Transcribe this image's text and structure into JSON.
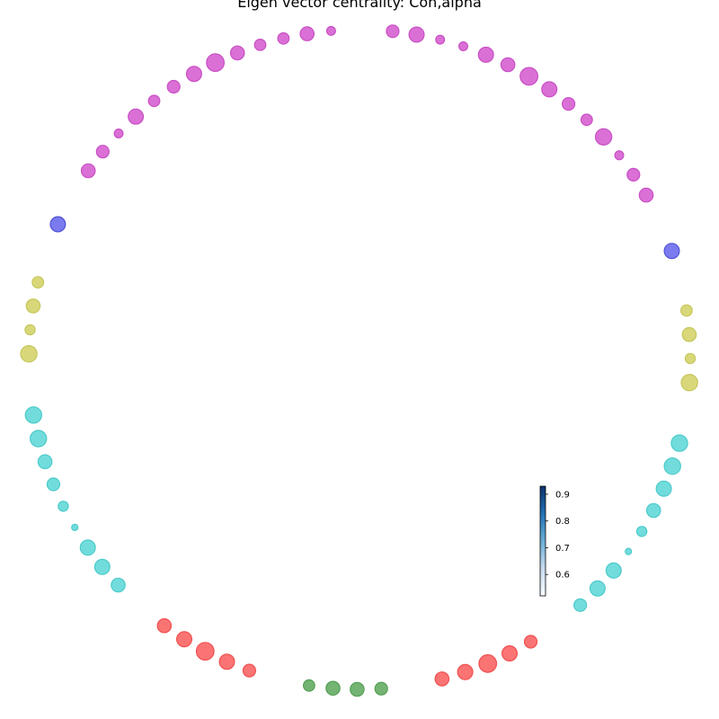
{
  "title": "Eigen vector centrality: Con,alpha",
  "groups": [
    {
      "id": "magenta",
      "fill": "#da70d6",
      "stroke": "#c94fc4"
    },
    {
      "id": "blue",
      "fill": "#7b7bef",
      "stroke": "#5252d6"
    },
    {
      "id": "yellow",
      "fill": "#d8d87a",
      "stroke": "#c6c65a"
    },
    {
      "id": "cyan",
      "fill": "#72dcdc",
      "stroke": "#4ccaca"
    },
    {
      "id": "red",
      "fill": "#fa7474",
      "stroke": "#f05050"
    },
    {
      "id": "green",
      "fill": "#73b473",
      "stroke": "#559e55"
    }
  ],
  "nodes": [
    {
      "group": "magenta",
      "value": 0.7
    },
    {
      "group": "magenta",
      "value": 0.8
    },
    {
      "group": "magenta",
      "value": 0.55
    },
    {
      "group": "magenta",
      "value": 0.55
    },
    {
      "group": "magenta",
      "value": 0.8
    },
    {
      "group": "magenta",
      "value": 0.75
    },
    {
      "group": "magenta",
      "value": 0.9
    },
    {
      "group": "magenta",
      "value": 0.8
    },
    {
      "group": "magenta",
      "value": 0.7
    },
    {
      "group": "magenta",
      "value": 0.65
    },
    {
      "group": "magenta",
      "value": 0.85
    },
    {
      "group": "magenta",
      "value": 0.55
    },
    {
      "group": "magenta",
      "value": 0.7
    },
    {
      "group": "magenta",
      "value": 0.75
    },
    {
      "group": "blue",
      "value": 0.8
    },
    {
      "group": "yellow",
      "value": 0.65
    },
    {
      "group": "yellow",
      "value": 0.75
    },
    {
      "group": "yellow",
      "value": 0.6
    },
    {
      "group": "yellow",
      "value": 0.85
    },
    {
      "group": "cyan",
      "value": 0.85
    },
    {
      "group": "cyan",
      "value": 0.85
    },
    {
      "group": "cyan",
      "value": 0.8
    },
    {
      "group": "cyan",
      "value": 0.75
    },
    {
      "group": "cyan",
      "value": 0.6
    },
    {
      "group": "cyan",
      "value": 0.45
    },
    {
      "group": "cyan",
      "value": 0.8
    },
    {
      "group": "cyan",
      "value": 0.8
    },
    {
      "group": "cyan",
      "value": 0.7
    },
    {
      "group": "red",
      "value": 0.7
    },
    {
      "group": "red",
      "value": 0.8
    },
    {
      "group": "red",
      "value": 0.9
    },
    {
      "group": "red",
      "value": 0.8
    },
    {
      "group": "red",
      "value": 0.75
    },
    {
      "group": "green",
      "value": 0.7
    },
    {
      "group": "green",
      "value": 0.75
    },
    {
      "group": "green",
      "value": 0.75
    },
    {
      "group": "green",
      "value": 0.65
    },
    {
      "group": "red",
      "value": 0.7
    },
    {
      "group": "red",
      "value": 0.8
    },
    {
      "group": "red",
      "value": 0.9
    },
    {
      "group": "red",
      "value": 0.8
    },
    {
      "group": "red",
      "value": 0.75
    },
    {
      "group": "cyan",
      "value": 0.75
    },
    {
      "group": "cyan",
      "value": 0.8
    },
    {
      "group": "cyan",
      "value": 0.8
    },
    {
      "group": "cyan",
      "value": 0.45
    },
    {
      "group": "cyan",
      "value": 0.6
    },
    {
      "group": "cyan",
      "value": 0.7
    },
    {
      "group": "cyan",
      "value": 0.75
    },
    {
      "group": "cyan",
      "value": 0.85
    },
    {
      "group": "cyan",
      "value": 0.85
    },
    {
      "group": "yellow",
      "value": 0.85
    },
    {
      "group": "yellow",
      "value": 0.6
    },
    {
      "group": "yellow",
      "value": 0.75
    },
    {
      "group": "yellow",
      "value": 0.65
    },
    {
      "group": "blue",
      "value": 0.8
    },
    {
      "group": "magenta",
      "value": 0.75
    },
    {
      "group": "magenta",
      "value": 0.7
    },
    {
      "group": "magenta",
      "value": 0.55
    },
    {
      "group": "magenta",
      "value": 0.8
    },
    {
      "group": "magenta",
      "value": 0.65
    },
    {
      "group": "magenta",
      "value": 0.7
    },
    {
      "group": "magenta",
      "value": 0.8
    },
    {
      "group": "magenta",
      "value": 0.9
    },
    {
      "group": "magenta",
      "value": 0.75
    },
    {
      "group": "magenta",
      "value": 0.65
    },
    {
      "group": "magenta",
      "value": 0.65
    },
    {
      "group": "magenta",
      "value": 0.75
    },
    {
      "group": "magenta",
      "value": 0.55
    }
  ],
  "colorbar": {
    "range": [
      0.52,
      0.93
    ],
    "ticks": [
      "0.6",
      "0.7",
      "0.8",
      "0.9"
    ],
    "tick_values": [
      0.6,
      0.7,
      0.8,
      0.9
    ]
  }
}
